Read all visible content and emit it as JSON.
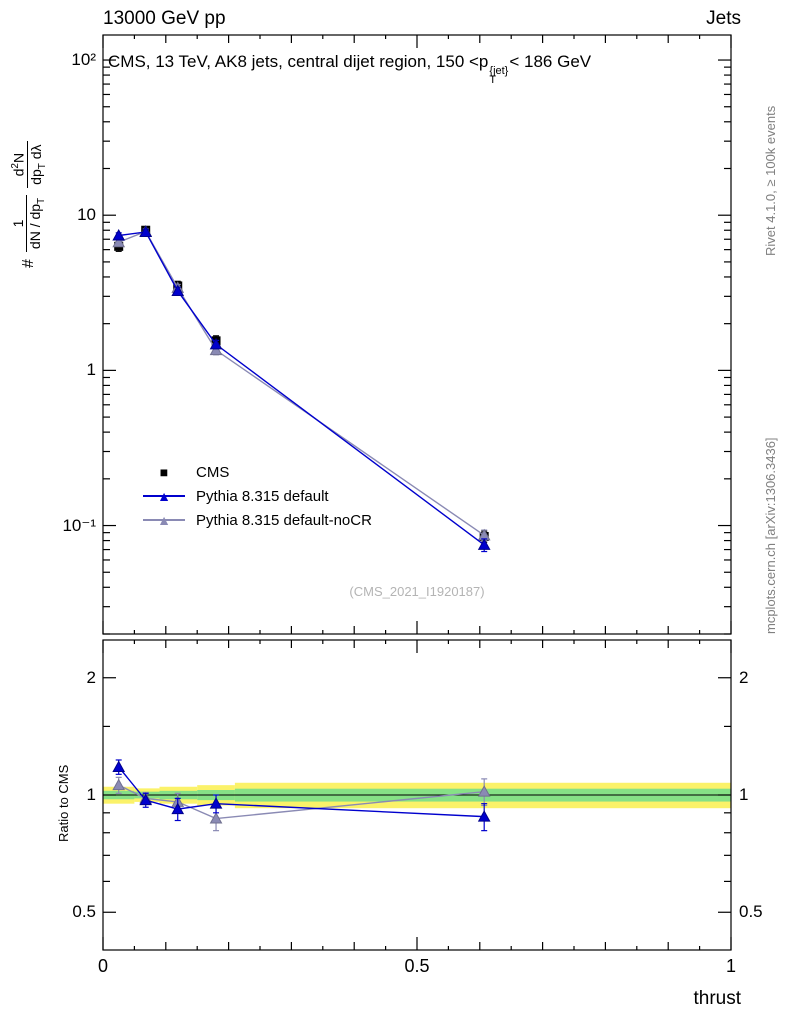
{
  "header": {
    "beam": "13000 GeV pp",
    "process": "Jets"
  },
  "plot_title": {
    "pre": "CMS, 13 TeV, AK8 jets, central dijet region, 150 <",
    "p": "p",
    "sup": "{jet}",
    "sub": "T",
    "post": "< 186 GeV"
  },
  "y_axis_label": {
    "hash": "#",
    "f1num": "1",
    "f1den_a": "dN / dp",
    "f1den_sub": "T",
    "f2num_a": "d",
    "f2num_sup": "2",
    "f2num_b": "N",
    "f2den_a": "dp",
    "f2den_sub": "T",
    "f2den_b": " dλ"
  },
  "ratio_label": "Ratio to CMS",
  "x_axis_label": "thrust",
  "watermark": "(CMS_2021_I1920187)",
  "side_notes": {
    "top_right": "Rivet 4.1.0, ≥ 100k events",
    "bottom_right": "mcplots.cern.ch [arXiv:1306.3436]"
  },
  "chart_data": {
    "type": "line",
    "x_range": [
      0,
      1
    ],
    "x_ticks": [
      {
        "v": 0,
        "label": "0"
      },
      {
        "v": 0.5,
        "label": "0.5"
      },
      {
        "v": 1,
        "label": "1"
      }
    ],
    "main_panel": {
      "y_scale": "log",
      "y_range": [
        0.02,
        145
      ],
      "y_ticks": [
        {
          "v": 100,
          "label": "10²"
        },
        {
          "v": 10,
          "label": "10"
        },
        {
          "v": 1,
          "label": "1"
        },
        {
          "v": 0.1,
          "label": "10⁻¹"
        }
      ],
      "series": [
        {
          "name": "CMS",
          "marker": "square",
          "color": "#000000",
          "draw_line": false,
          "x": [
            0.025,
            0.068,
            0.119,
            0.18,
            0.607
          ],
          "y": [
            6.3,
            8.0,
            3.5,
            1.55,
            0.085
          ],
          "yerr": [
            0.45,
            0.45,
            0.25,
            0.12,
            0.007
          ]
        },
        {
          "name": "Pythia 8.315 default",
          "marker": "triangle",
          "color": "#0000cd",
          "edge": "#00008b",
          "draw_line": true,
          "x": [
            0.025,
            0.068,
            0.119,
            0.18,
            0.607
          ],
          "y": [
            7.4,
            7.8,
            3.25,
            1.47,
            0.075
          ],
          "yerr": [
            0.3,
            0.3,
            0.18,
            0.09,
            0.007
          ]
        },
        {
          "name": "Pythia 8.315 default-noCR",
          "marker": "triangle",
          "color": "#8a8ab4",
          "edge": "#70708f",
          "draw_line": true,
          "x": [
            0.025,
            0.068,
            0.119,
            0.18,
            0.607
          ],
          "y": [
            6.7,
            7.85,
            3.4,
            1.35,
            0.0865
          ],
          "yerr": [
            0.3,
            0.3,
            0.18,
            0.09,
            0.007
          ]
        }
      ]
    },
    "ratio_panel": {
      "y_scale": "log",
      "y_range": [
        0.4,
        2.5
      ],
      "y_ticks": [
        {
          "v": 2,
          "label": "2"
        },
        {
          "v": 1,
          "label": "1"
        },
        {
          "v": 0.5,
          "label": "0.5"
        }
      ],
      "minor_ticks": [
        0.6,
        0.7,
        0.8,
        0.9,
        1.5
      ],
      "bands": {
        "edges": [
          0.0,
          0.05,
          0.09,
          0.15,
          0.21,
          1.0
        ],
        "yellow_half_width": [
          0.05,
          0.04,
          0.05,
          0.06,
          0.075
        ],
        "green_half_width": [
          0.025,
          0.02,
          0.025,
          0.03,
          0.038
        ],
        "yellow_color": "#fbf269",
        "green_color": "#86e186"
      },
      "series": [
        {
          "name": "Pythia 8.315 default",
          "marker": "triangle",
          "color": "#0000cd",
          "edge": "#00008b",
          "x": [
            0.025,
            0.068,
            0.119,
            0.18,
            0.607
          ],
          "y": [
            1.18,
            0.97,
            0.92,
            0.95,
            0.88
          ],
          "yerr": [
            0.05,
            0.04,
            0.06,
            0.05,
            0.07
          ]
        },
        {
          "name": "Pythia 8.315 default-noCR",
          "marker": "triangle",
          "color": "#8a8ab4",
          "edge": "#70708f",
          "x": [
            0.025,
            0.068,
            0.119,
            0.18,
            0.607
          ],
          "y": [
            1.06,
            0.98,
            0.96,
            0.87,
            1.02
          ],
          "yerr": [
            0.05,
            0.035,
            0.05,
            0.06,
            0.08
          ]
        }
      ]
    }
  }
}
